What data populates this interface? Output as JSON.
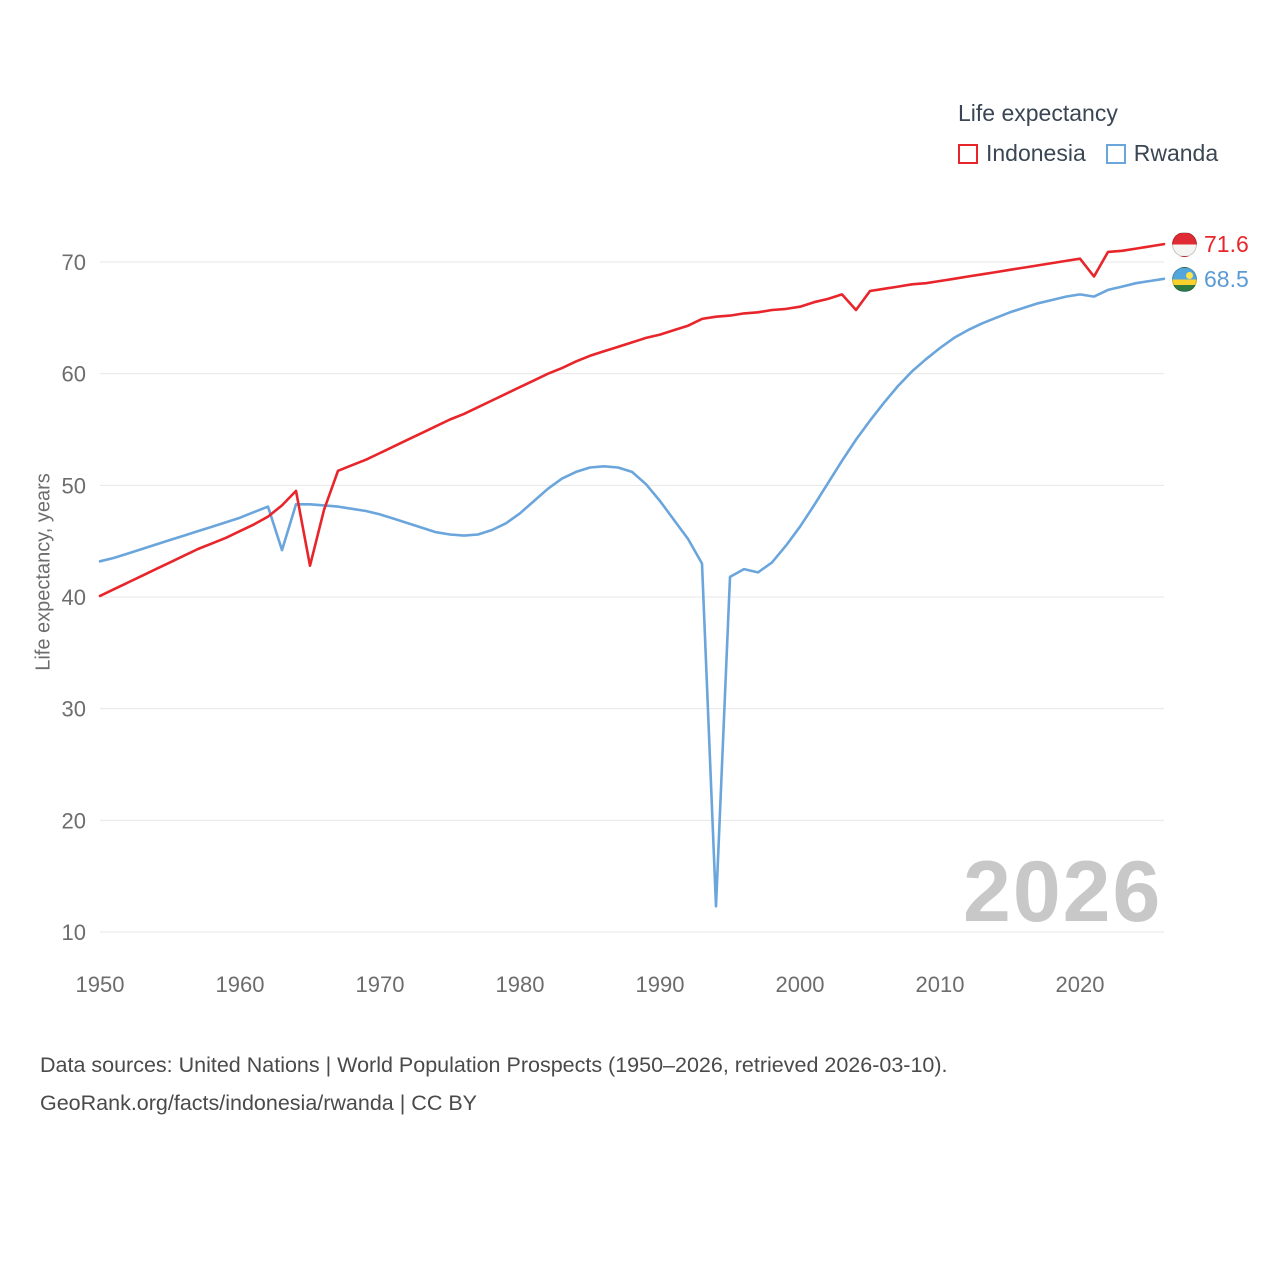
{
  "legend": {
    "title": "Life expectancy",
    "items": [
      {
        "label": "Indonesia",
        "color": "#e8252a"
      },
      {
        "label": "Rwanda",
        "color": "#6aa5dc"
      }
    ]
  },
  "end_labels": [
    {
      "value": "71.6",
      "color": "#e8252a",
      "flag": "indonesia-flag"
    },
    {
      "value": "68.5",
      "color": "#5b9bd5",
      "flag": "rwanda-flag"
    }
  ],
  "watermark": "2026",
  "footer": {
    "line1": "Data sources: United Nations | World Population Prospects (1950–2026, retrieved 2026-03-10).",
    "line2": "GeoRank.org/facts/indonesia/rwanda | CC BY"
  },
  "chart_data": {
    "type": "line",
    "title": "Life expectancy",
    "xlabel": "",
    "ylabel": "Life expectancy, years",
    "xlim": [
      1950,
      2026
    ],
    "ylim": [
      10,
      73
    ],
    "x_ticks": [
      1950,
      1960,
      1970,
      1980,
      1990,
      2000,
      2010,
      2020
    ],
    "y_ticks": [
      10,
      20,
      30,
      40,
      50,
      60,
      70
    ],
    "grid": "horizontal",
    "legend_position": "top-right",
    "x": [
      1950,
      1951,
      1952,
      1953,
      1954,
      1955,
      1956,
      1957,
      1958,
      1959,
      1960,
      1961,
      1962,
      1963,
      1964,
      1965,
      1966,
      1967,
      1968,
      1969,
      1970,
      1971,
      1972,
      1973,
      1974,
      1975,
      1976,
      1977,
      1978,
      1979,
      1980,
      1981,
      1982,
      1983,
      1984,
      1985,
      1986,
      1987,
      1988,
      1989,
      1990,
      1991,
      1992,
      1993,
      1994,
      1995,
      1996,
      1997,
      1998,
      1999,
      2000,
      2001,
      2002,
      2003,
      2004,
      2005,
      2006,
      2007,
      2008,
      2009,
      2010,
      2011,
      2012,
      2013,
      2014,
      2015,
      2016,
      2017,
      2018,
      2019,
      2020,
      2021,
      2022,
      2023,
      2024,
      2025,
      2026
    ],
    "series": [
      {
        "name": "Indonesia",
        "color": "#e8252a",
        "values": [
          40.1,
          40.7,
          41.3,
          41.9,
          42.5,
          43.1,
          43.7,
          44.3,
          44.8,
          45.3,
          45.9,
          46.5,
          47.2,
          48.2,
          49.5,
          42.8,
          47.8,
          51.3,
          51.8,
          52.3,
          52.9,
          53.5,
          54.1,
          54.7,
          55.3,
          55.9,
          56.4,
          57.0,
          57.6,
          58.2,
          58.8,
          59.4,
          60.0,
          60.5,
          61.1,
          61.6,
          62.0,
          62.4,
          62.8,
          63.2,
          63.5,
          63.9,
          64.3,
          64.9,
          65.1,
          65.2,
          65.4,
          65.5,
          65.7,
          65.8,
          66.0,
          66.4,
          66.7,
          67.1,
          65.7,
          67.4,
          67.6,
          67.8,
          68.0,
          68.1,
          68.3,
          68.5,
          68.7,
          68.9,
          69.1,
          69.3,
          69.5,
          69.7,
          69.9,
          70.1,
          70.3,
          68.7,
          70.9,
          71.0,
          71.2,
          71.4,
          71.6
        ]
      },
      {
        "name": "Rwanda",
        "color": "#6aa5dc",
        "values": [
          43.2,
          43.5,
          43.9,
          44.3,
          44.7,
          45.1,
          45.5,
          45.9,
          46.3,
          46.7,
          47.1,
          47.6,
          48.1,
          44.2,
          48.3,
          48.3,
          48.2,
          48.1,
          47.9,
          47.7,
          47.4,
          47.0,
          46.6,
          46.2,
          45.8,
          45.6,
          45.5,
          45.6,
          46.0,
          46.6,
          47.5,
          48.6,
          49.7,
          50.6,
          51.2,
          51.6,
          51.7,
          51.6,
          51.2,
          50.1,
          48.6,
          46.9,
          45.2,
          43.0,
          12.3,
          41.8,
          42.5,
          42.2,
          43.1,
          44.6,
          46.3,
          48.2,
          50.2,
          52.2,
          54.1,
          55.8,
          57.4,
          58.9,
          60.2,
          61.3,
          62.3,
          63.2,
          63.9,
          64.5,
          65.0,
          65.5,
          65.9,
          66.3,
          66.6,
          66.9,
          67.1,
          66.9,
          67.5,
          67.8,
          68.1,
          68.3,
          68.5
        ]
      }
    ]
  }
}
